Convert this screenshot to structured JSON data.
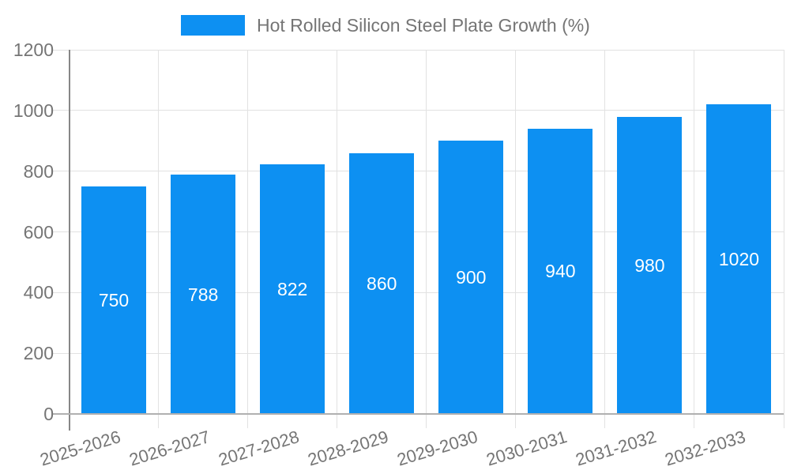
{
  "chart_data": {
    "type": "bar",
    "title": "Hot Rolled Silicon Steel Plate Growth (%)",
    "categories": [
      "2025-2026",
      "2026-2027",
      "2027-2028",
      "2028-2029",
      "2029-2030",
      "2030-2031",
      "2031-2032",
      "2032-2033"
    ],
    "series": [
      {
        "name": "Hot Rolled Silicon Steel Plate Growth (%)",
        "values": [
          750,
          788,
          822,
          860,
          900,
          940,
          980,
          1020
        ]
      }
    ],
    "bar_value_labels": [
      "750",
      "788",
      "822",
      "860",
      "900",
      "940",
      "980",
      "1020"
    ],
    "xlabel": "",
    "ylabel": "",
    "ylim": [
      0,
      1200
    ],
    "yticks": [
      0,
      200,
      400,
      600,
      800,
      1000,
      1200
    ],
    "grid": true,
    "legend_position": "top-center"
  },
  "legend": {
    "series_label": "Hot Rolled Silicon Steel Plate Growth (%)"
  },
  "colors": {
    "bar": "#0d90f2",
    "bar_label_text": "#ffffff",
    "axis_text": "#757575",
    "legend_text": "#757575",
    "gridline": "#e2e2e2",
    "baseline": "#b0b0b0",
    "axis_line": "#878787",
    "background": "#ffffff"
  }
}
